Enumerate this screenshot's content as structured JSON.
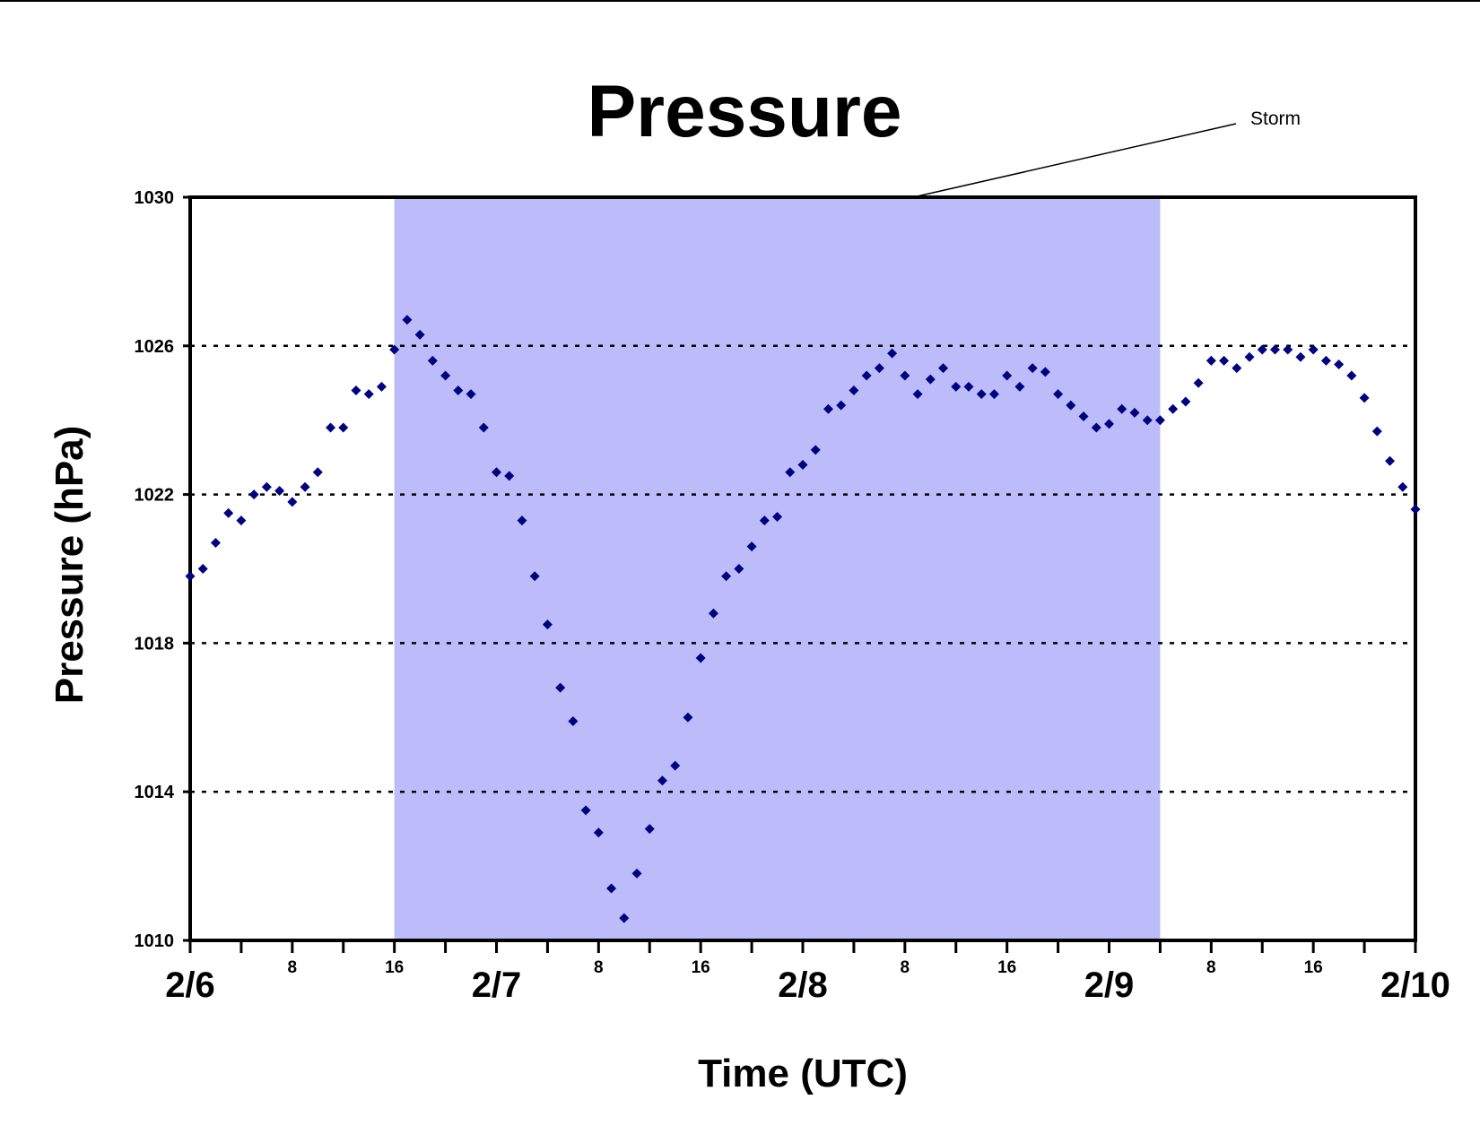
{
  "chart_data": {
    "type": "scatter",
    "title": "Pressure",
    "xlabel": "Time (UTC)",
    "ylabel": "Pressure (hPa)",
    "ylim": [
      1010,
      1030
    ],
    "y_ticks": [
      "1010",
      "1014",
      "1018",
      "1022",
      "1026",
      "1030"
    ],
    "y_gridlines": [
      1014,
      1018,
      1022,
      1026
    ],
    "grid": "dotted horizontal",
    "day_labels": [
      "2/6",
      "2/7",
      "2/8",
      "2/9",
      "2/10"
    ],
    "hour_labels": [
      "8",
      "16"
    ],
    "x_unit": "hours since 2/6 00 UTC",
    "xlim": [
      0,
      96
    ],
    "annotation": {
      "text": "Storm",
      "shaded_range": [
        16,
        76
      ],
      "shade_color": "#bcbcfa"
    },
    "marker_color": "#000080",
    "series": [
      {
        "name": "",
        "x": [
          0,
          1,
          2,
          3,
          4,
          5,
          6,
          7,
          8,
          9,
          10,
          11,
          12,
          13,
          14,
          15,
          16,
          17,
          18,
          19,
          20,
          21,
          22,
          23,
          24,
          25,
          26,
          27,
          28,
          29,
          30,
          31,
          32,
          33,
          34,
          35,
          36,
          37,
          38,
          39,
          40,
          41,
          42,
          43,
          44,
          45,
          46,
          47,
          48,
          49,
          50,
          51,
          52,
          53,
          54,
          55,
          56,
          57,
          58,
          59,
          60,
          61,
          62,
          63,
          64,
          65,
          66,
          67,
          68,
          69,
          70,
          71,
          72,
          73,
          74,
          75,
          76,
          77,
          78,
          79,
          80,
          81,
          82,
          83,
          84,
          85,
          86,
          87,
          88,
          89,
          90,
          91,
          92,
          93,
          94,
          95,
          96
        ],
        "y": [
          1019.8,
          1020.0,
          1020.7,
          1021.5,
          1021.3,
          1022.0,
          1022.2,
          1022.1,
          1021.8,
          1022.2,
          1022.6,
          1023.8,
          1023.8,
          1024.8,
          1024.7,
          1024.9,
          1025.9,
          1026.7,
          1026.3,
          1025.6,
          1025.2,
          1024.8,
          1024.7,
          1023.8,
          1022.6,
          1022.5,
          1021.3,
          1019.8,
          1018.5,
          1016.8,
          1015.9,
          1013.5,
          1012.9,
          1011.4,
          1010.6,
          1011.8,
          1013.0,
          1014.3,
          1014.7,
          1016.0,
          1017.6,
          1018.8,
          1019.8,
          1020.0,
          1020.6,
          1021.3,
          1021.4,
          1022.6,
          1022.8,
          1023.2,
          1024.3,
          1024.4,
          1024.8,
          1025.2,
          1025.4,
          1025.8,
          1025.2,
          1024.7,
          1025.1,
          1025.4,
          1024.9,
          1024.9,
          1024.7,
          1024.7,
          1025.2,
          1024.9,
          1025.4,
          1025.3,
          1024.7,
          1024.4,
          1024.1,
          1023.8,
          1023.9,
          1024.3,
          1024.2,
          1024.0,
          1024.0,
          1024.3,
          1024.5,
          1025.0,
          1025.6,
          1025.6,
          1025.4,
          1025.7,
          1025.9,
          1025.9,
          1025.9,
          1025.7,
          1025.9,
          1025.6,
          1025.5,
          1025.2,
          1024.6,
          1023.7,
          1022.9,
          1022.2,
          1021.6
        ]
      }
    ]
  }
}
